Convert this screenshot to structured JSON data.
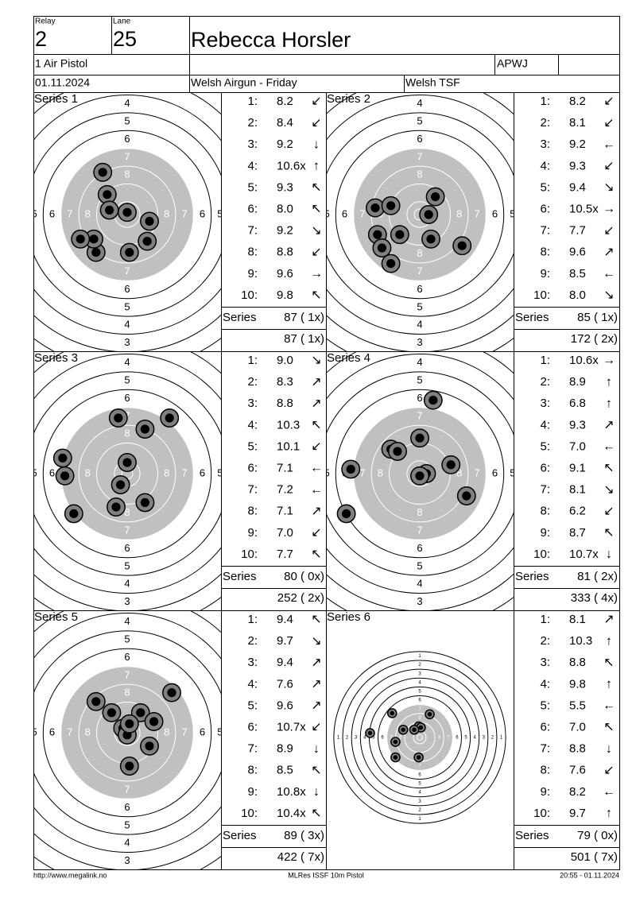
{
  "header": {
    "relay_label": "Relay",
    "relay": "2",
    "lane_label": "Lane",
    "lane": "25",
    "name": "Rebecca Horsler",
    "event": "1 Air Pistol",
    "class": "APWJ",
    "date": "01.11.2024",
    "competition": "Welsh Airgun - Friday",
    "club": "Welsh TSF"
  },
  "target": {
    "ring_numbers": [
      1,
      2,
      3,
      4,
      5,
      6,
      7,
      8
    ]
  },
  "series": [
    {
      "title": "Series 1",
      "total_label": "Series",
      "total": "87 ( 1x)",
      "cumulative": "87 ( 1x)",
      "shots": [
        {
          "n": "1:",
          "score": "8.2",
          "dir": "↙"
        },
        {
          "n": "2:",
          "score": "8.4",
          "dir": "↙"
        },
        {
          "n": "3:",
          "score": "9.2",
          "dir": "↓"
        },
        {
          "n": "4:",
          "score": "10.6x",
          "dir": "↑"
        },
        {
          "n": "5:",
          "score": "9.3",
          "dir": "↖"
        },
        {
          "n": "6:",
          "score": "8.0",
          "dir": "↖"
        },
        {
          "n": "7:",
          "score": "9.2",
          "dir": "↘"
        },
        {
          "n": "8:",
          "score": "8.8",
          "dir": "↙"
        },
        {
          "n": "9:",
          "score": "9.6",
          "dir": "→"
        },
        {
          "n": "10:",
          "score": "9.8",
          "dir": "↖"
        }
      ],
      "hits": [
        [
          -11,
          19
        ],
        [
          -9,
          9
        ],
        [
          -8,
          2
        ],
        [
          0,
          1
        ],
        [
          10,
          -3
        ],
        [
          9,
          -12
        ],
        [
          1,
          -17
        ],
        [
          -14,
          -17
        ],
        [
          -15,
          -11
        ],
        [
          -21,
          -11
        ]
      ]
    },
    {
      "title": "Series 2",
      "total_label": "Series",
      "total": "85 ( 1x)",
      "cumulative": "172 ( 2x)",
      "shots": [
        {
          "n": "1:",
          "score": "8.2",
          "dir": "↙"
        },
        {
          "n": "2:",
          "score": "8.1",
          "dir": "↙"
        },
        {
          "n": "3:",
          "score": "9.2",
          "dir": "←"
        },
        {
          "n": "4:",
          "score": "9.3",
          "dir": "↙"
        },
        {
          "n": "5:",
          "score": "9.4",
          "dir": "↘"
        },
        {
          "n": "6:",
          "score": "10.5x",
          "dir": "→"
        },
        {
          "n": "7:",
          "score": "7.7",
          "dir": "↙"
        },
        {
          "n": "8:",
          "score": "9.6",
          "dir": "↗"
        },
        {
          "n": "9:",
          "score": "8.5",
          "dir": "←"
        },
        {
          "n": "10:",
          "score": "8.0",
          "dir": "↘"
        }
      ],
      "hits": [
        [
          7,
          8
        ],
        [
          4,
          0
        ],
        [
          -20,
          3
        ],
        [
          -13,
          4
        ],
        [
          -19,
          -9
        ],
        [
          -9,
          -9
        ],
        [
          -17,
          -15
        ],
        [
          5,
          -11
        ],
        [
          19,
          -14
        ],
        [
          -13,
          -22
        ]
      ]
    },
    {
      "title": "Series 3",
      "total_label": "Series",
      "total": "80 ( 0x)",
      "cumulative": "252 ( 2x)",
      "shots": [
        {
          "n": "1:",
          "score": "9.0",
          "dir": "↘"
        },
        {
          "n": "2:",
          "score": "8.3",
          "dir": "↗"
        },
        {
          "n": "3:",
          "score": "8.8",
          "dir": "↗"
        },
        {
          "n": "4:",
          "score": "10.3",
          "dir": "↖"
        },
        {
          "n": "5:",
          "score": "10.1",
          "dir": "↙"
        },
        {
          "n": "6:",
          "score": "7.1",
          "dir": "←"
        },
        {
          "n": "7:",
          "score": "7.2",
          "dir": "←"
        },
        {
          "n": "8:",
          "score": "7.1",
          "dir": "↗"
        },
        {
          "n": "9:",
          "score": "7.0",
          "dir": "↙"
        },
        {
          "n": "10:",
          "score": "7.7",
          "dir": "↖"
        }
      ],
      "hits": [
        [
          -4,
          25
        ],
        [
          19,
          25
        ],
        [
          8,
          20
        ],
        [
          -29,
          7
        ],
        [
          -28,
          -1
        ],
        [
          0,
          5
        ],
        [
          -3,
          -5
        ],
        [
          8,
          -13
        ],
        [
          -5,
          -15
        ],
        [
          -24,
          -18
        ]
      ]
    },
    {
      "title": "Series 4",
      "total_label": "Series",
      "total": "81 ( 2x)",
      "cumulative": "333 ( 4x)",
      "shots": [
        {
          "n": "1:",
          "score": "10.6x",
          "dir": "→"
        },
        {
          "n": "2:",
          "score": "8.9",
          "dir": "↑"
        },
        {
          "n": "3:",
          "score": "6.8",
          "dir": "↑"
        },
        {
          "n": "4:",
          "score": "9.3",
          "dir": "↗"
        },
        {
          "n": "5:",
          "score": "7.0",
          "dir": "←"
        },
        {
          "n": "6:",
          "score": "9.1",
          "dir": "↖"
        },
        {
          "n": "7:",
          "score": "8.1",
          "dir": "↘"
        },
        {
          "n": "8:",
          "score": "6.2",
          "dir": "↙"
        },
        {
          "n": "9:",
          "score": "8.7",
          "dir": "↖"
        },
        {
          "n": "10:",
          "score": "10.7x",
          "dir": "↓"
        }
      ],
      "hits": [
        [
          6,
          33
        ],
        [
          0,
          16
        ],
        [
          -13,
          11
        ],
        [
          -10,
          10
        ],
        [
          14,
          4
        ],
        [
          3,
          0
        ],
        [
          0,
          -1
        ],
        [
          21,
          -10
        ],
        [
          -31,
          2
        ],
        [
          -33,
          -18
        ]
      ]
    },
    {
      "title": "Series 5",
      "total_label": "Series",
      "total": "89 ( 3x)",
      "cumulative": "422 ( 7x)",
      "shots": [
        {
          "n": "1:",
          "score": "9.4",
          "dir": "↖"
        },
        {
          "n": "2:",
          "score": "9.7",
          "dir": "↘"
        },
        {
          "n": "3:",
          "score": "9.4",
          "dir": "↗"
        },
        {
          "n": "4:",
          "score": "7.6",
          "dir": "↗"
        },
        {
          "n": "5:",
          "score": "9.6",
          "dir": "↗"
        },
        {
          "n": "6:",
          "score": "10.7x",
          "dir": "↙"
        },
        {
          "n": "7:",
          "score": "8.9",
          "dir": "↓"
        },
        {
          "n": "8:",
          "score": "8.5",
          "dir": "↖"
        },
        {
          "n": "9:",
          "score": "10.8x",
          "dir": "↓"
        },
        {
          "n": "10:",
          "score": "10.4x",
          "dir": "↖"
        }
      ],
      "hits": [
        [
          20,
          18
        ],
        [
          -14,
          14
        ],
        [
          -7,
          9
        ],
        [
          6,
          9
        ],
        [
          12,
          5
        ],
        [
          -2,
          2
        ],
        [
          0,
          -1
        ],
        [
          10,
          -6
        ],
        [
          1,
          -15
        ],
        [
          1,
          4
        ]
      ]
    },
    {
      "title": "Series 6",
      "total_label": "Series",
      "total": "79 ( 0x)",
      "cumulative": "501 ( 7x)",
      "full_target": true,
      "shots": [
        {
          "n": "1:",
          "score": "8.1",
          "dir": "↗"
        },
        {
          "n": "2:",
          "score": "10.3",
          "dir": "↑"
        },
        {
          "n": "3:",
          "score": "8.8",
          "dir": "↖"
        },
        {
          "n": "4:",
          "score": "9.8",
          "dir": "↑"
        },
        {
          "n": "5:",
          "score": "5.5",
          "dir": "←"
        },
        {
          "n": "6:",
          "score": "7.0",
          "dir": "↖"
        },
        {
          "n": "7:",
          "score": "8.8",
          "dir": "↓"
        },
        {
          "n": "8:",
          "score": "7.6",
          "dir": "↙"
        },
        {
          "n": "9:",
          "score": "8.2",
          "dir": "←"
        },
        {
          "n": "10:",
          "score": "9.7",
          "dir": "↑"
        }
      ],
      "hits": [
        [
          9,
          21
        ],
        [
          -1,
          10
        ],
        [
          1,
          9
        ],
        [
          -5,
          7
        ],
        [
          -15,
          7
        ],
        [
          -25,
          22
        ],
        [
          -45,
          4
        ],
        [
          -22,
          -4
        ],
        [
          -22,
          -18
        ],
        [
          -1,
          -18
        ]
      ]
    }
  ],
  "footer": {
    "left": "http://www.megalink.no",
    "center": "MLRes ISSF 10m Pistol",
    "right": "20:55 - 01.11.2024"
  }
}
